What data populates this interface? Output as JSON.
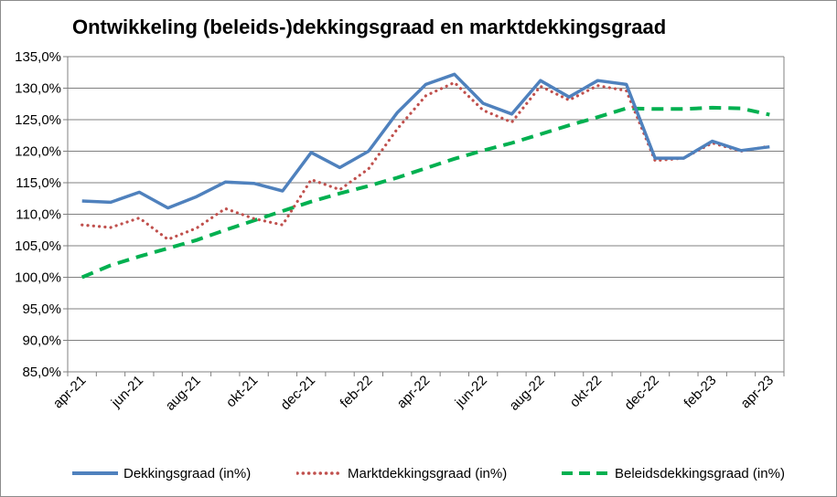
{
  "chart_data": {
    "type": "line",
    "title": "Ontwikkeling (beleids-)dekkingsgraad en marktdekkingsgraad",
    "xlabel": "",
    "ylabel": "",
    "ylim": [
      85,
      135
    ],
    "yticks": [
      "85,0%",
      "90,0%",
      "95,0%",
      "100,0%",
      "105,0%",
      "110,0%",
      "115,0%",
      "120,0%",
      "125,0%",
      "130,0%",
      "135,0%"
    ],
    "x": [
      "apr-21",
      "mei-21",
      "jun-21",
      "jul-21",
      "aug-21",
      "sep-21",
      "okt-21",
      "nov-21",
      "dec-21",
      "jan-22",
      "feb-22",
      "mrt-22",
      "apr-22",
      "mei-22",
      "jun-22",
      "jul-22",
      "aug-22",
      "sep-22",
      "okt-22",
      "nov-22",
      "dec-22",
      "jan-23",
      "feb-23",
      "mrt-23",
      "apr-23"
    ],
    "xticks": [
      "apr-21",
      "jun-21",
      "aug-21",
      "okt-21",
      "dec-21",
      "feb-22",
      "apr-22",
      "jun-22",
      "aug-22",
      "okt-22",
      "dec-22",
      "feb-23",
      "apr-23"
    ],
    "grid": true,
    "legend_position": "bottom",
    "series": [
      {
        "name": "Dekkingsgraad (in%)",
        "color": "#4f81bd",
        "style": "solid",
        "values": [
          112.1,
          111.9,
          113.5,
          111.0,
          112.8,
          115.1,
          114.9,
          113.7,
          119.8,
          117.4,
          120.0,
          126.1,
          130.6,
          132.2,
          127.6,
          125.9,
          131.2,
          128.6,
          131.2,
          130.6,
          118.9,
          118.9,
          121.6,
          120.1,
          120.7
        ]
      },
      {
        "name": "Marktdekkingsgraad (in%)",
        "color": "#c0504d",
        "style": "dotted",
        "values": [
          108.3,
          107.9,
          109.4,
          106.0,
          107.8,
          110.9,
          109.3,
          108.3,
          115.5,
          113.9,
          117.2,
          123.5,
          128.8,
          130.9,
          126.5,
          124.6,
          130.3,
          128.1,
          130.4,
          129.6,
          118.5,
          118.9,
          121.3,
          120.0,
          120.8
        ]
      },
      {
        "name": "Beleidsdekkingsgraad (in%)",
        "color": "#00b050",
        "style": "dashed",
        "values": [
          100.0,
          101.9,
          103.3,
          104.6,
          105.9,
          107.5,
          109.0,
          110.5,
          112.0,
          113.3,
          114.5,
          115.8,
          117.3,
          118.8,
          120.1,
          121.3,
          122.7,
          124.1,
          125.4,
          126.8,
          126.7,
          126.7,
          126.9,
          126.8,
          125.8
        ]
      }
    ]
  }
}
